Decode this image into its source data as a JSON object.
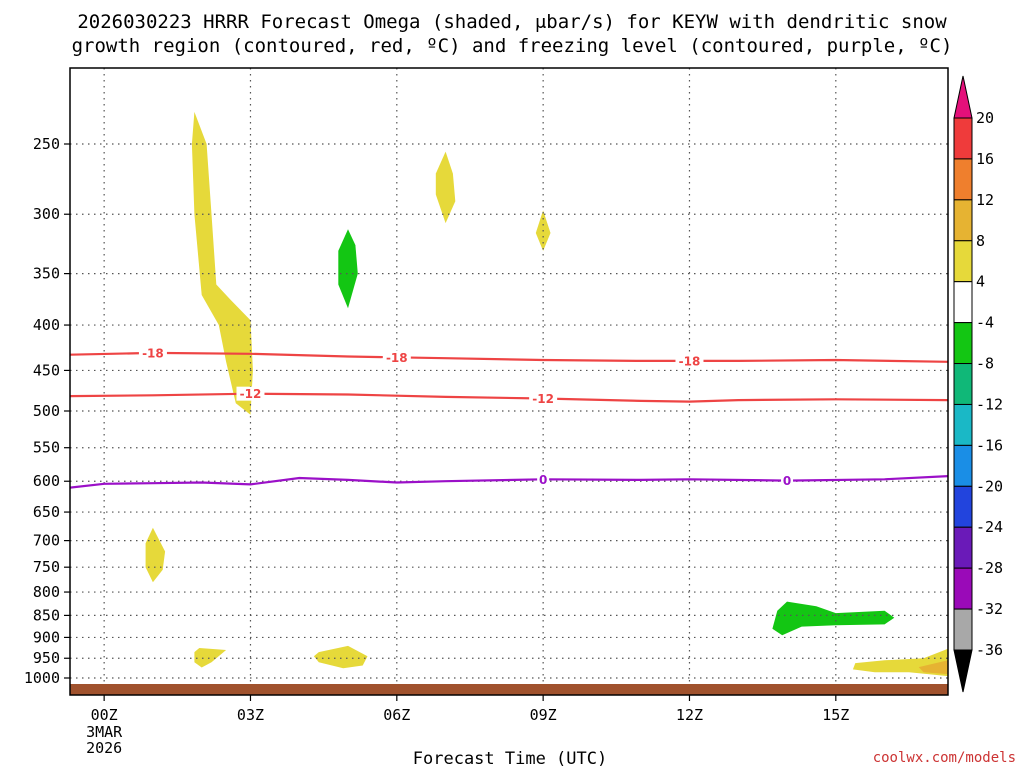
{
  "chart_data": {
    "type": "heatmap",
    "title_line1": "2026030223 HRRR Forecast Omega (shaded, μbar/s) for KEYW with dendritic snow",
    "title_line2": "growth region (contoured, red, ºC) and freezing level (contoured, purple, ºC)",
    "xlabel": "Forecast Time (UTC)",
    "credit": "coolwx.com/models",
    "xlim": [
      -0.7,
      17.3
    ],
    "x_ticks": [
      {
        "v": 0,
        "label": "00Z",
        "sub": [
          "3MAR",
          "2026"
        ]
      },
      {
        "v": 3,
        "label": "03Z"
      },
      {
        "v": 6,
        "label": "06Z"
      },
      {
        "v": 9,
        "label": "09Z"
      },
      {
        "v": 12,
        "label": "12Z"
      },
      {
        "v": 15,
        "label": "15Z"
      }
    ],
    "y_ticks": [
      250,
      300,
      350,
      400,
      450,
      500,
      550,
      600,
      650,
      700,
      750,
      800,
      850,
      900,
      950,
      1000
    ],
    "ylim_hpa": [
      200,
      1000
    ],
    "colorbar": {
      "labels": [
        "20",
        "16",
        "12",
        "8",
        "4",
        "-4",
        "-8",
        "-12",
        "-16",
        "-20",
        "-24",
        "-28",
        "-32",
        "-36"
      ],
      "colors_top_to_bottom": [
        "#e4107a",
        "#ef3b3b",
        "#ef7f2d",
        "#e6b332",
        "#e6d93a",
        "#ffffff",
        "#13c613",
        "#10b878",
        "#1ab8c6",
        "#1a8ee6",
        "#2244dd",
        "#6a1ab8",
        "#9a0ab8",
        "#a8a8a8",
        "#000000"
      ]
    },
    "contours": [
      {
        "kind": "dgz",
        "label": "-18",
        "color": "#ee4444",
        "points": [
          [
            -0.7,
            432
          ],
          [
            1,
            430
          ],
          [
            3,
            431
          ],
          [
            5,
            434
          ],
          [
            7,
            436
          ],
          [
            9,
            438
          ],
          [
            11,
            439
          ],
          [
            13,
            439
          ],
          [
            15,
            438
          ],
          [
            17.3,
            440
          ]
        ],
        "label_at": [
          1,
          6,
          12
        ]
      },
      {
        "kind": "dgz",
        "label": "-12",
        "color": "#ee4444",
        "points": [
          [
            -0.7,
            481
          ],
          [
            1,
            480
          ],
          [
            3,
            478
          ],
          [
            5,
            479
          ],
          [
            7,
            482
          ],
          [
            9,
            484
          ],
          [
            11,
            487
          ],
          [
            12,
            488
          ],
          [
            13,
            486
          ],
          [
            15,
            485
          ],
          [
            17.3,
            486
          ]
        ],
        "label_at": [
          3,
          9
        ]
      },
      {
        "kind": "freezing",
        "label": "0",
        "color": "#9b10c8",
        "points": [
          [
            -0.7,
            610
          ],
          [
            0,
            604
          ],
          [
            1,
            603
          ],
          [
            2,
            602
          ],
          [
            3,
            605
          ],
          [
            4,
            595
          ],
          [
            5,
            598
          ],
          [
            6,
            602
          ],
          [
            7,
            600
          ],
          [
            9,
            597
          ],
          [
            11,
            598
          ],
          [
            12,
            597
          ],
          [
            14,
            599
          ],
          [
            16,
            597
          ],
          [
            17.3,
            592
          ]
        ],
        "label_at": [
          9,
          14
        ]
      }
    ],
    "regions": [
      {
        "name": "omega-yellow-column",
        "fill": "#e6d93a",
        "points": [
          [
            1.85,
            230
          ],
          [
            2.1,
            250
          ],
          [
            2.2,
            300
          ],
          [
            2.3,
            360
          ],
          [
            2.6,
            375
          ],
          [
            3.0,
            395
          ],
          [
            3.05,
            450
          ],
          [
            3.0,
            505
          ],
          [
            2.7,
            490
          ],
          [
            2.5,
            440
          ],
          [
            2.35,
            400
          ],
          [
            2.0,
            370
          ],
          [
            1.85,
            300
          ],
          [
            1.8,
            250
          ]
        ]
      },
      {
        "name": "omega-green-0500",
        "fill": "#13c613",
        "points": [
          [
            5.0,
            312
          ],
          [
            5.15,
            325
          ],
          [
            5.2,
            350
          ],
          [
            5.0,
            383
          ],
          [
            4.8,
            360
          ],
          [
            4.8,
            330
          ]
        ]
      },
      {
        "name": "omega-yellow-0700",
        "fill": "#e6d93a",
        "points": [
          [
            7.0,
            255
          ],
          [
            7.15,
            270
          ],
          [
            7.2,
            290
          ],
          [
            7.0,
            307
          ],
          [
            6.8,
            285
          ],
          [
            6.8,
            270
          ]
        ]
      },
      {
        "name": "omega-yellow-0900",
        "fill": "#e6d93a",
        "points": [
          [
            9.0,
            297
          ],
          [
            9.15,
            315
          ],
          [
            9.0,
            330
          ],
          [
            8.85,
            315
          ]
        ]
      },
      {
        "name": "omega-yellow-0100",
        "fill": "#e6d93a",
        "points": [
          [
            1.0,
            677
          ],
          [
            1.25,
            720
          ],
          [
            1.2,
            755
          ],
          [
            1.0,
            780
          ],
          [
            0.85,
            750
          ],
          [
            0.85,
            705
          ]
        ]
      },
      {
        "name": "omega-yellow-0200-low",
        "fill": "#e6d93a",
        "points": [
          [
            1.95,
            925
          ],
          [
            2.3,
            928
          ],
          [
            2.5,
            930
          ],
          [
            2.2,
            960
          ],
          [
            2.0,
            973
          ],
          [
            1.85,
            960
          ],
          [
            1.85,
            935
          ]
        ]
      },
      {
        "name": "omega-yellow-0500-low",
        "fill": "#e6d93a",
        "points": [
          [
            4.4,
            935
          ],
          [
            5.0,
            920
          ],
          [
            5.4,
            945
          ],
          [
            5.3,
            968
          ],
          [
            4.9,
            975
          ],
          [
            4.4,
            960
          ],
          [
            4.3,
            945
          ]
        ]
      },
      {
        "name": "omega-green-1400",
        "fill": "#13c613",
        "points": [
          [
            13.7,
            880
          ],
          [
            13.8,
            840
          ],
          [
            14.0,
            820
          ],
          [
            14.6,
            830
          ],
          [
            15.0,
            845
          ],
          [
            16.0,
            840
          ],
          [
            16.2,
            855
          ],
          [
            16.0,
            870
          ],
          [
            15.0,
            872
          ],
          [
            14.3,
            875
          ],
          [
            13.9,
            895
          ]
        ]
      },
      {
        "name": "omega-yellow-1600-low",
        "fill": "#e6d93a",
        "points": [
          [
            15.4,
            962
          ],
          [
            16.0,
            955
          ],
          [
            16.8,
            950
          ],
          [
            17.3,
            927
          ],
          [
            17.3,
            995
          ],
          [
            16.5,
            985
          ],
          [
            15.8,
            985
          ],
          [
            15.35,
            978
          ]
        ]
      },
      {
        "name": "omega-orange-1700-low",
        "fill": "#e6b332",
        "points": [
          [
            16.7,
            972
          ],
          [
            17.3,
            955
          ],
          [
            17.3,
            990
          ],
          [
            16.8,
            985
          ]
        ]
      }
    ]
  }
}
